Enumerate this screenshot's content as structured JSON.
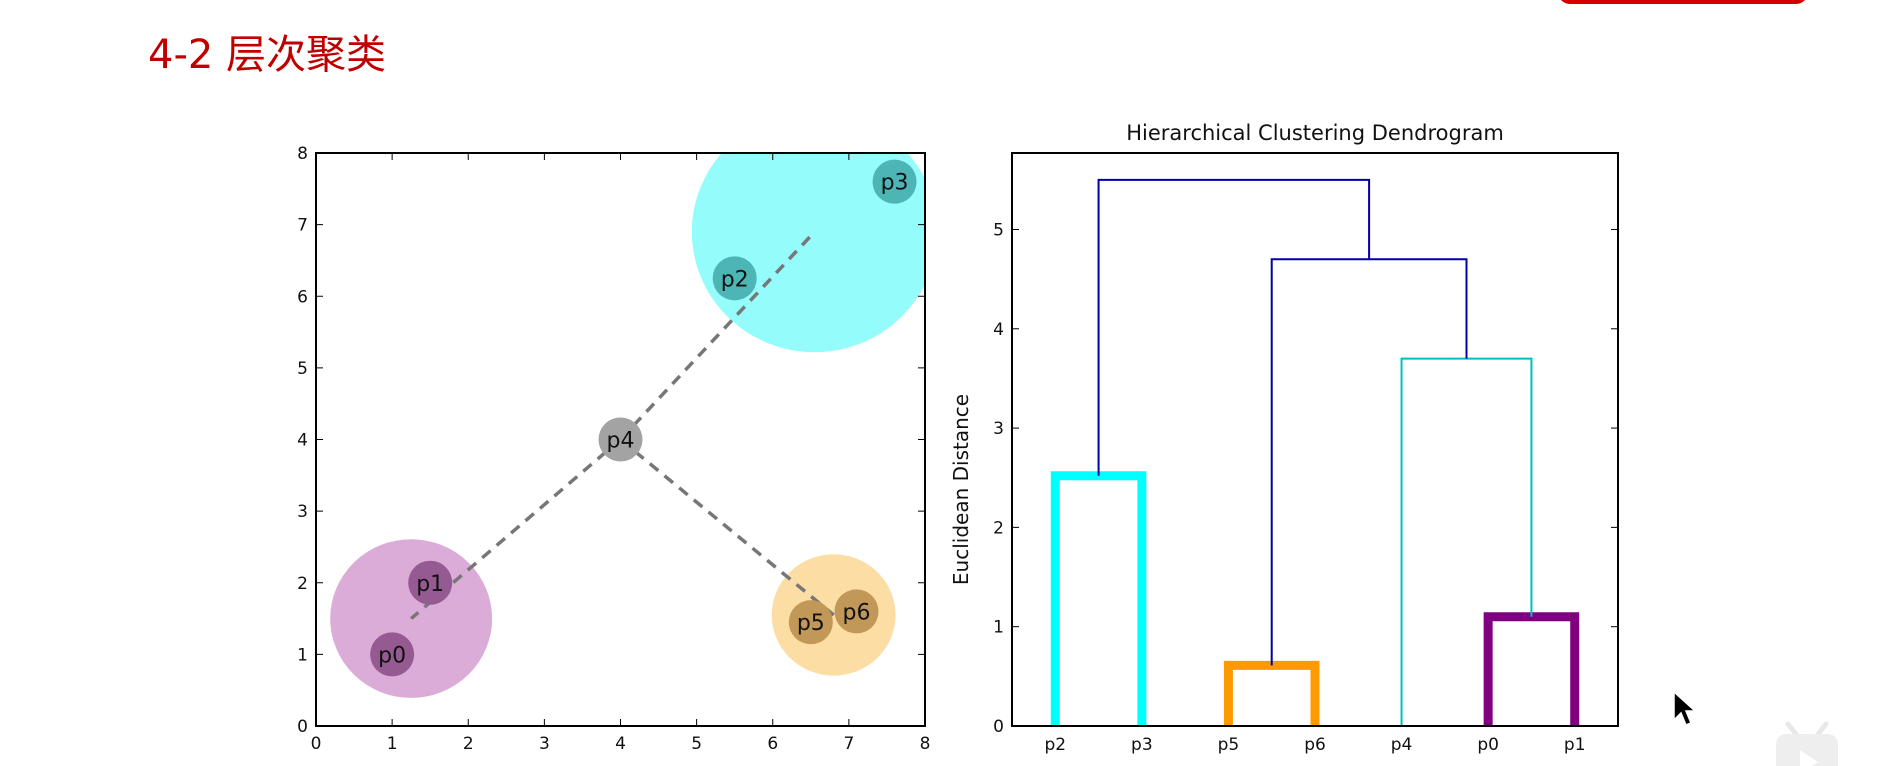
{
  "slide": {
    "title": "4-2 层次聚类"
  },
  "colors": {
    "title": "#c00000",
    "top_button": "#d40000"
  },
  "icons": {
    "cursor": "mouse-pointer-icon",
    "watermark": "bilibili-tv-icon"
  },
  "chart_data": [
    {
      "type": "scatter",
      "title": "",
      "xlim": [
        0,
        8
      ],
      "ylim": [
        0,
        8
      ],
      "xticks": [
        "0",
        "1",
        "2",
        "3",
        "4",
        "5",
        "6",
        "7",
        "8"
      ],
      "yticks": [
        "0",
        "1",
        "2",
        "3",
        "4",
        "5",
        "6",
        "7",
        "8"
      ],
      "grid": false,
      "points": [
        {
          "label": "p0",
          "x": 1.0,
          "y": 1.0,
          "color": "#955a91"
        },
        {
          "label": "p1",
          "x": 1.5,
          "y": 2.0,
          "color": "#955a91"
        },
        {
          "label": "p2",
          "x": 5.5,
          "y": 6.25,
          "color": "#4db5b5"
        },
        {
          "label": "p3",
          "x": 7.6,
          "y": 7.6,
          "color": "#4db5b5"
        },
        {
          "label": "p4",
          "x": 4.0,
          "y": 4.0,
          "color": "#a3a3a3"
        },
        {
          "label": "p5",
          "x": 6.5,
          "y": 1.45,
          "color": "#c29858"
        },
        {
          "label": "p6",
          "x": 7.1,
          "y": 1.6,
          "color": "#c29858"
        }
      ],
      "clusters": [
        {
          "members": [
            "p0",
            "p1"
          ],
          "cx": 1.25,
          "cy": 1.5,
          "r": 1.05,
          "color": "#dba8d8"
        },
        {
          "members": [
            "p2",
            "p3"
          ],
          "cx": 6.55,
          "cy": 6.9,
          "r": 1.6,
          "color": "#8ffcfa"
        },
        {
          "members": [
            "p5",
            "p6"
          ],
          "cx": 6.8,
          "cy": 1.55,
          "r": 0.8,
          "color": "#fcdca0"
        }
      ],
      "links": [
        {
          "from": [
            4.0,
            4.0
          ],
          "to": [
            1.25,
            1.5
          ]
        },
        {
          "from": [
            4.0,
            4.0
          ],
          "to": [
            6.55,
            6.9
          ]
        },
        {
          "from": [
            4.0,
            4.0
          ],
          "to": [
            6.8,
            1.55
          ]
        }
      ]
    },
    {
      "type": "dendrogram",
      "title": "Hierarchical Clustering Dendrogram",
      "xlabel": "",
      "ylabel": "Euclidean Distance",
      "leaves": [
        "p2",
        "p3",
        "p5",
        "p6",
        "p4",
        "p0",
        "p1"
      ],
      "ylim": [
        0,
        5.77
      ],
      "yticks": [
        "0",
        "1",
        "2",
        "3",
        "4",
        "5"
      ],
      "grid": false,
      "merges": [
        {
          "left": "p2",
          "right": "p3",
          "height": 2.52,
          "color": "#00ffff",
          "thick": true
        },
        {
          "left": "p5",
          "right": "p6",
          "height": 0.61,
          "color": "#ff9900",
          "thick": true
        },
        {
          "left": "p0",
          "right": "p1",
          "height": 1.1,
          "color": "#800080",
          "thick": true
        },
        {
          "left": "p4",
          "right": "(p0,p1)",
          "height": 3.7,
          "color": "#00bfbf",
          "thick": false
        },
        {
          "left": "(p5,p6)",
          "right": "(p4,p0,p1)",
          "height": 4.7,
          "color": "#0000aa",
          "thick": false
        },
        {
          "left": "(p2,p3)",
          "right": "(p5,p6,p4,p0,p1)",
          "height": 5.5,
          "color": "#0000aa",
          "thick": false
        }
      ]
    }
  ]
}
